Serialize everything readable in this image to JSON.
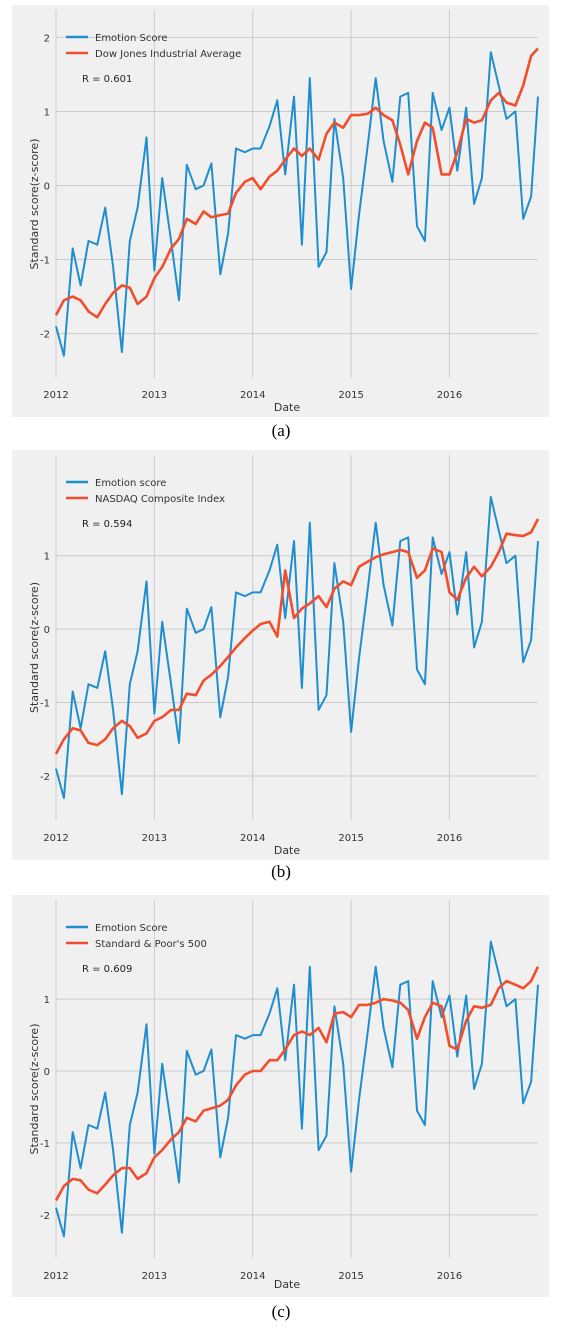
{
  "chart_data": [
    {
      "type": "line",
      "caption": "(a)",
      "xlabel": "Date",
      "ylabel": "Standard score(z-score)",
      "annotation": "R = 0.601",
      "x_ticks": [
        "2012",
        "2013",
        "2014",
        "2015",
        "2016"
      ],
      "y_ticks": [
        "-2",
        "-1",
        "0",
        "1",
        "2"
      ],
      "xlim": [
        2012.0,
        2016.9
      ],
      "ylim": [
        -2.6,
        2.1
      ],
      "legend": "top-left",
      "grid": true,
      "series": [
        {
          "name": "Emotion Score",
          "color": "#1f8ecf",
          "x": [
            2012.0,
            2012.08,
            2012.17,
            2012.25,
            2012.33,
            2012.42,
            2012.5,
            2012.58,
            2012.67,
            2012.75,
            2012.83,
            2012.92,
            2013.0,
            2013.08,
            2013.17,
            2013.25,
            2013.33,
            2013.42,
            2013.5,
            2013.58,
            2013.67,
            2013.75,
            2013.83,
            2013.92,
            2014.0,
            2014.08,
            2014.17,
            2014.25,
            2014.33,
            2014.42,
            2014.5,
            2014.58,
            2014.67,
            2014.75,
            2014.83,
            2014.92,
            2015.0,
            2015.08,
            2015.17,
            2015.25,
            2015.33,
            2015.42,
            2015.5,
            2015.58,
            2015.67,
            2015.75,
            2015.83,
            2015.92,
            2016.0,
            2016.08,
            2016.17,
            2016.25,
            2016.33,
            2016.42,
            2016.5,
            2016.58,
            2016.67,
            2016.75,
            2016.83,
            2016.9
          ],
          "values": [
            -1.9,
            -2.3,
            -0.85,
            -1.35,
            -0.75,
            -0.8,
            -0.3,
            -1.1,
            -2.25,
            -0.75,
            -0.3,
            0.65,
            -1.15,
            0.1,
            -0.75,
            -1.55,
            0.28,
            -0.05,
            0.0,
            0.3,
            -1.2,
            -0.65,
            0.5,
            0.45,
            0.5,
            0.5,
            0.8,
            1.15,
            0.15,
            1.2,
            -0.8,
            1.45,
            -1.1,
            -0.9,
            0.9,
            0.1,
            -1.4,
            -0.4,
            0.55,
            1.45,
            0.6,
            0.05,
            1.2,
            1.25,
            -0.55,
            -0.75,
            1.25,
            0.75,
            1.05,
            0.2,
            1.05,
            -0.25,
            0.1,
            1.8,
            1.35,
            0.9,
            1.0,
            -0.45,
            -0.15,
            1.2
          ]
        },
        {
          "name": "Dow Jones Industrial Average",
          "color": "#f24d2c",
          "x": [
            2012.0,
            2012.08,
            2012.17,
            2012.25,
            2012.33,
            2012.42,
            2012.5,
            2012.58,
            2012.67,
            2012.75,
            2012.83,
            2012.92,
            2013.0,
            2013.08,
            2013.17,
            2013.25,
            2013.33,
            2013.42,
            2013.5,
            2013.58,
            2013.67,
            2013.75,
            2013.83,
            2013.92,
            2014.0,
            2014.08,
            2014.17,
            2014.25,
            2014.33,
            2014.42,
            2014.5,
            2014.58,
            2014.67,
            2014.75,
            2014.83,
            2014.92,
            2015.0,
            2015.08,
            2015.17,
            2015.25,
            2015.33,
            2015.42,
            2015.5,
            2015.58,
            2015.67,
            2015.75,
            2015.83,
            2015.92,
            2016.0,
            2016.08,
            2016.17,
            2016.25,
            2016.33,
            2016.42,
            2016.5,
            2016.58,
            2016.67,
            2016.75,
            2016.83,
            2016.9
          ],
          "values": [
            -1.75,
            -1.55,
            -1.5,
            -1.55,
            -1.7,
            -1.78,
            -1.6,
            -1.45,
            -1.35,
            -1.38,
            -1.6,
            -1.5,
            -1.25,
            -1.1,
            -0.85,
            -0.72,
            -0.45,
            -0.52,
            -0.35,
            -0.43,
            -0.4,
            -0.38,
            -0.1,
            0.05,
            0.1,
            -0.05,
            0.12,
            0.2,
            0.35,
            0.5,
            0.4,
            0.5,
            0.35,
            0.7,
            0.85,
            0.78,
            0.95,
            0.95,
            0.97,
            1.05,
            0.95,
            0.88,
            0.55,
            0.15,
            0.6,
            0.85,
            0.78,
            0.15,
            0.15,
            0.45,
            0.9,
            0.85,
            0.88,
            1.15,
            1.25,
            1.12,
            1.08,
            1.35,
            1.75,
            1.85
          ]
        }
      ]
    },
    {
      "type": "line",
      "caption": "(b)",
      "xlabel": "Date",
      "ylabel": "Standard score(z-score)",
      "annotation": "R = 0.594",
      "x_ticks": [
        "2012",
        "2013",
        "2014",
        "2015",
        "2016"
      ],
      "y_ticks": [
        "-2",
        "-1",
        "0",
        "1"
      ],
      "xlim": [
        2012.0,
        2016.9
      ],
      "ylim": [
        -2.6,
        2.1
      ],
      "legend": "top-left",
      "grid": true,
      "series": [
        {
          "name": "Emotion score",
          "color": "#1f8ecf",
          "x": [
            2012.0,
            2012.08,
            2012.17,
            2012.25,
            2012.33,
            2012.42,
            2012.5,
            2012.58,
            2012.67,
            2012.75,
            2012.83,
            2012.92,
            2013.0,
            2013.08,
            2013.17,
            2013.25,
            2013.33,
            2013.42,
            2013.5,
            2013.58,
            2013.67,
            2013.75,
            2013.83,
            2013.92,
            2014.0,
            2014.08,
            2014.17,
            2014.25,
            2014.33,
            2014.42,
            2014.5,
            2014.58,
            2014.67,
            2014.75,
            2014.83,
            2014.92,
            2015.0,
            2015.08,
            2015.17,
            2015.25,
            2015.33,
            2015.42,
            2015.5,
            2015.58,
            2015.67,
            2015.75,
            2015.83,
            2015.92,
            2016.0,
            2016.08,
            2016.17,
            2016.25,
            2016.33,
            2016.42,
            2016.5,
            2016.58,
            2016.67,
            2016.75,
            2016.83,
            2016.9
          ],
          "values": [
            -1.9,
            -2.3,
            -0.85,
            -1.35,
            -0.75,
            -0.8,
            -0.3,
            -1.1,
            -2.25,
            -0.75,
            -0.3,
            0.65,
            -1.15,
            0.1,
            -0.75,
            -1.55,
            0.28,
            -0.05,
            0.0,
            0.3,
            -1.2,
            -0.65,
            0.5,
            0.45,
            0.5,
            0.5,
            0.8,
            1.15,
            0.15,
            1.2,
            -0.8,
            1.45,
            -1.1,
            -0.9,
            0.9,
            0.1,
            -1.4,
            -0.4,
            0.55,
            1.45,
            0.6,
            0.05,
            1.2,
            1.25,
            -0.55,
            -0.75,
            1.25,
            0.75,
            1.05,
            0.2,
            1.05,
            -0.25,
            0.1,
            1.8,
            1.35,
            0.9,
            1.0,
            -0.45,
            -0.15,
            1.2
          ]
        },
        {
          "name": "NASDAQ Composite Index",
          "color": "#f24d2c",
          "x": [
            2012.0,
            2012.08,
            2012.17,
            2012.25,
            2012.33,
            2012.42,
            2012.5,
            2012.58,
            2012.67,
            2012.75,
            2012.83,
            2012.92,
            2013.0,
            2013.08,
            2013.17,
            2013.25,
            2013.33,
            2013.42,
            2013.5,
            2013.58,
            2013.67,
            2013.75,
            2013.83,
            2013.92,
            2014.0,
            2014.08,
            2014.17,
            2014.25,
            2014.33,
            2014.42,
            2014.5,
            2014.58,
            2014.67,
            2014.75,
            2014.83,
            2014.92,
            2015.0,
            2015.08,
            2015.17,
            2015.25,
            2015.33,
            2015.42,
            2015.5,
            2015.58,
            2015.67,
            2015.75,
            2015.83,
            2015.92,
            2016.0,
            2016.08,
            2016.17,
            2016.25,
            2016.33,
            2016.42,
            2016.5,
            2016.58,
            2016.67,
            2016.75,
            2016.83,
            2016.9
          ],
          "values": [
            -1.7,
            -1.5,
            -1.35,
            -1.38,
            -1.55,
            -1.58,
            -1.5,
            -1.35,
            -1.25,
            -1.32,
            -1.48,
            -1.42,
            -1.25,
            -1.2,
            -1.1,
            -1.1,
            -0.88,
            -0.9,
            -0.7,
            -0.62,
            -0.5,
            -0.38,
            -0.25,
            -0.12,
            -0.02,
            0.07,
            0.1,
            -0.1,
            0.8,
            0.15,
            0.28,
            0.35,
            0.45,
            0.3,
            0.55,
            0.65,
            0.6,
            0.85,
            0.92,
            0.98,
            1.02,
            1.05,
            1.08,
            1.05,
            0.7,
            0.8,
            1.1,
            1.05,
            0.5,
            0.4,
            0.7,
            0.85,
            0.72,
            0.85,
            1.05,
            1.3,
            1.28,
            1.27,
            1.32,
            1.5
          ]
        }
      ]
    },
    {
      "type": "line",
      "caption": "(c)",
      "xlabel": "Date",
      "ylabel": "Standard score(z-score)",
      "annotation": "R = 0.609",
      "x_ticks": [
        "2012",
        "2013",
        "2014",
        "2015",
        "2016"
      ],
      "y_ticks": [
        "-2",
        "-1",
        "0",
        "1"
      ],
      "xlim": [
        2012.0,
        2016.9
      ],
      "ylim": [
        -2.6,
        2.1
      ],
      "legend": "top-left",
      "grid": true,
      "series": [
        {
          "name": "Emotion Score",
          "color": "#1f8ecf",
          "x": [
            2012.0,
            2012.08,
            2012.17,
            2012.25,
            2012.33,
            2012.42,
            2012.5,
            2012.58,
            2012.67,
            2012.75,
            2012.83,
            2012.92,
            2013.0,
            2013.08,
            2013.17,
            2013.25,
            2013.33,
            2013.42,
            2013.5,
            2013.58,
            2013.67,
            2013.75,
            2013.83,
            2013.92,
            2014.0,
            2014.08,
            2014.17,
            2014.25,
            2014.33,
            2014.42,
            2014.5,
            2014.58,
            2014.67,
            2014.75,
            2014.83,
            2014.92,
            2015.0,
            2015.08,
            2015.17,
            2015.25,
            2015.33,
            2015.42,
            2015.5,
            2015.58,
            2015.67,
            2015.75,
            2015.83,
            2015.92,
            2016.0,
            2016.08,
            2016.17,
            2016.25,
            2016.33,
            2016.42,
            2016.5,
            2016.58,
            2016.67,
            2016.75,
            2016.83,
            2016.9
          ],
          "values": [
            -1.9,
            -2.3,
            -0.85,
            -1.35,
            -0.75,
            -0.8,
            -0.3,
            -1.1,
            -2.25,
            -0.75,
            -0.3,
            0.65,
            -1.15,
            0.1,
            -0.75,
            -1.55,
            0.28,
            -0.05,
            0.0,
            0.3,
            -1.2,
            -0.65,
            0.5,
            0.45,
            0.5,
            0.5,
            0.8,
            1.15,
            0.15,
            1.2,
            -0.8,
            1.45,
            -1.1,
            -0.9,
            0.9,
            0.1,
            -1.4,
            -0.4,
            0.55,
            1.45,
            0.6,
            0.05,
            1.2,
            1.25,
            -0.55,
            -0.75,
            1.25,
            0.75,
            1.05,
            0.2,
            1.05,
            -0.25,
            0.1,
            1.8,
            1.35,
            0.9,
            1.0,
            -0.45,
            -0.15,
            1.2
          ]
        },
        {
          "name": "Standard & Poor's 500",
          "color": "#f24d2c",
          "x": [
            2012.0,
            2012.08,
            2012.17,
            2012.25,
            2012.33,
            2012.42,
            2012.5,
            2012.58,
            2012.67,
            2012.75,
            2012.83,
            2012.92,
            2013.0,
            2013.08,
            2013.17,
            2013.25,
            2013.33,
            2013.42,
            2013.5,
            2013.58,
            2013.67,
            2013.75,
            2013.83,
            2013.92,
            2014.0,
            2014.08,
            2014.17,
            2014.25,
            2014.33,
            2014.42,
            2014.5,
            2014.58,
            2014.67,
            2014.75,
            2014.83,
            2014.92,
            2015.0,
            2015.08,
            2015.17,
            2015.25,
            2015.33,
            2015.42,
            2015.5,
            2015.58,
            2015.67,
            2015.75,
            2015.83,
            2015.92,
            2016.0,
            2016.08,
            2016.17,
            2016.25,
            2016.33,
            2016.42,
            2016.5,
            2016.58,
            2016.67,
            2016.75,
            2016.83,
            2016.9
          ],
          "values": [
            -1.8,
            -1.6,
            -1.5,
            -1.52,
            -1.65,
            -1.7,
            -1.58,
            -1.45,
            -1.35,
            -1.35,
            -1.5,
            -1.42,
            -1.2,
            -1.1,
            -0.95,
            -0.85,
            -0.65,
            -0.7,
            -0.55,
            -0.52,
            -0.48,
            -0.4,
            -0.2,
            -0.05,
            0.0,
            0.0,
            0.15,
            0.15,
            0.3,
            0.5,
            0.55,
            0.5,
            0.6,
            0.4,
            0.8,
            0.82,
            0.75,
            0.92,
            0.92,
            0.95,
            1.0,
            0.98,
            0.95,
            0.85,
            0.45,
            0.75,
            0.95,
            0.9,
            0.35,
            0.3,
            0.7,
            0.9,
            0.88,
            0.92,
            1.15,
            1.25,
            1.2,
            1.15,
            1.25,
            1.45
          ]
        }
      ]
    }
  ]
}
